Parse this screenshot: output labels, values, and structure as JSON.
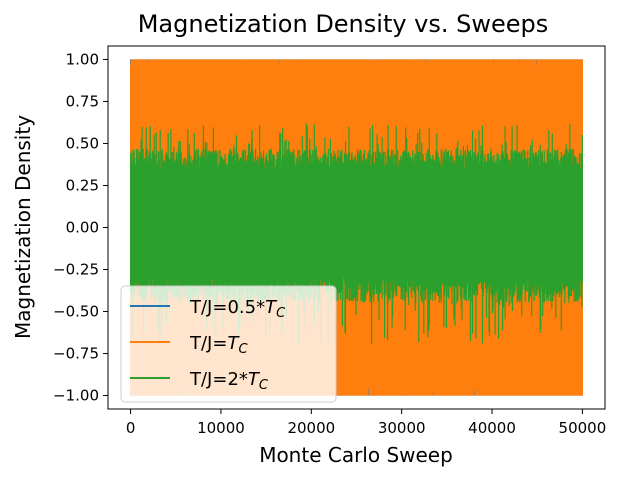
{
  "chart_data": {
    "type": "line",
    "title": "Magnetization Density vs. Sweeps",
    "xlabel": "Monte Carlo Sweep",
    "ylabel": "Magnetization Density",
    "xlim": [
      -2500,
      52500
    ],
    "ylim": [
      -1.08,
      1.08
    ],
    "x_range": [
      0,
      50000
    ],
    "xticks": [
      0,
      10000,
      20000,
      30000,
      40000,
      50000
    ],
    "xtick_labels": [
      "0",
      "10000",
      "20000",
      "30000",
      "40000",
      "50000"
    ],
    "yticks": [
      1.0,
      0.75,
      0.5,
      0.25,
      0.0,
      -0.25,
      -0.5,
      -0.75,
      -1.0
    ],
    "ytick_labels": [
      "1.00",
      "0.75",
      "0.50",
      "0.25",
      "0.00",
      "−0.25",
      "−0.50",
      "−0.75",
      "−1.00"
    ],
    "grid": false,
    "legend_position": "lower-left",
    "series": [
      {
        "name": "T/J=0.5*T_C",
        "label_prefix": "T/J=0.5",
        "label_math": "*T",
        "label_sub": "C",
        "color": "#1f77b4",
        "band": [
          -1.0,
          1.0
        ],
        "core": [
          -0.98,
          0.99
        ]
      },
      {
        "name": "T/J=T_C",
        "label_prefix": "T/J=",
        "label_math": "T",
        "label_sub": "C",
        "color": "#ff7f0e",
        "band": [
          -1.0,
          1.0
        ],
        "core": [
          -0.35,
          0.35
        ]
      },
      {
        "name": "T/J=2*T_C",
        "label_prefix": "T/J=2*",
        "label_math": "T",
        "label_sub": "C",
        "color": "#2ca02c",
        "band": [
          -0.7,
          0.62
        ],
        "core": [
          -0.3,
          0.35
        ]
      }
    ]
  }
}
